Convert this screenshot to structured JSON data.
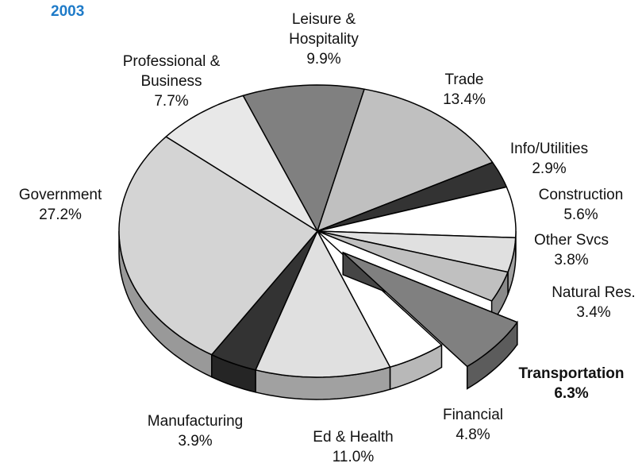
{
  "chart_data": {
    "type": "pie3d",
    "title": "2003",
    "categories": [
      "Leisure & Hospitality",
      "Trade",
      "Info/Utilities",
      "Construction",
      "Other Svcs",
      "Natural Res.",
      "Transportation",
      "Financial",
      "Ed & Health",
      "Manufacturing",
      "Government",
      "Professional & Business"
    ],
    "values": [
      9.9,
      13.4,
      2.9,
      5.6,
      3.8,
      3.4,
      6.3,
      4.8,
      11.0,
      3.9,
      27.2,
      7.7
    ],
    "value_labels": [
      "9.9%",
      "13.4%",
      "2.9%",
      "5.6%",
      "3.8%",
      "3.4%",
      "6.3%",
      "4.8%",
      "11.0%",
      "3.9%",
      "27.2%",
      "7.7%"
    ],
    "colors": [
      "#808080",
      "#c0c0c0",
      "#333333",
      "#ffffff",
      "#e0e0e0",
      "#c0c0c0",
      "#808080",
      "#ffffff",
      "#e0e0e0",
      "#333333",
      "#d4d4d4",
      "#e8e8e8"
    ],
    "explode": 6
  }
}
